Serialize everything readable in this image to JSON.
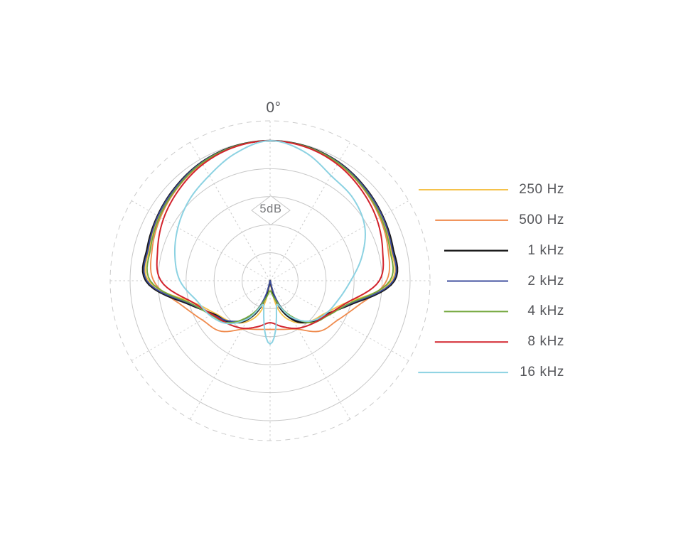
{
  "page": {
    "background": "#ffffff",
    "text_color": "#55565a"
  },
  "chart_data": {
    "type": "line",
    "subtype": "polar-pattern",
    "angle_zero_label": "0°",
    "db_ring_label": "5dB",
    "db_per_ring": 5,
    "num_solid_rings": 5,
    "outer_ring_db": 0,
    "center_db": -25,
    "angle_step_deg": 15,
    "grid": {
      "grid_on": true,
      "ring_color": "#c7c7c7",
      "dashed_color": "#cbcbcb",
      "radial_lines_every_deg": 30,
      "legend_position": "right"
    },
    "series": [
      {
        "name": "250 Hz",
        "color": "#F5C24B",
        "width": 1.8,
        "mirror": true,
        "angles_deg_0_to_180_step15": true,
        "db": [
          0,
          -0.2,
          -0.7,
          -1.4,
          -2.1,
          -2.7,
          -3.3,
          -10.5,
          -13.5,
          -14.8,
          -16.5,
          -20,
          -28
        ]
      },
      {
        "name": "500 Hz",
        "color": "#EF8A4C",
        "width": 1.8,
        "mirror": true,
        "angles_deg_0_to_180_step15": true,
        "db": [
          0,
          -0.25,
          -0.8,
          -1.6,
          -2.4,
          -3.2,
          -4.2,
          -8.5,
          -11,
          -12.3,
          -15,
          -16,
          -16.3
        ]
      },
      {
        "name": "1 kHz",
        "color": "#1A1A1A",
        "width": 2.4,
        "mirror": true,
        "angles_deg_0_to_180_step15": true,
        "db": [
          0,
          -0.15,
          -0.55,
          -1.2,
          -1.8,
          -2.3,
          -2.8,
          -9.5,
          -13.2,
          -14.6,
          -17,
          -22,
          -32
        ]
      },
      {
        "name": "2 kHz",
        "color": "#3D4D9E",
        "width": 1.9,
        "mirror": true,
        "angles_deg_0_to_180_step15": true,
        "db": [
          0,
          -0.2,
          -0.6,
          -1.3,
          -1.9,
          -2.5,
          -3.0,
          -9.8,
          -13.0,
          -14.8,
          -17.5,
          -23,
          -32
        ]
      },
      {
        "name": "4 kHz",
        "color": "#74A73D",
        "width": 1.9,
        "mirror": true,
        "angles_deg_0_to_180_step15": true,
        "db": [
          0,
          -0.2,
          -0.7,
          -1.5,
          -2.2,
          -2.9,
          -3.6,
          -10,
          -12.8,
          -14.4,
          -17.8,
          -21.5,
          -23.2
        ]
      },
      {
        "name": "8 kHz",
        "color": "#D2232D",
        "width": 2.0,
        "mirror": true,
        "angles_deg_0_to_180_step15": true,
        "db": [
          0,
          -0.3,
          -1.0,
          -2.0,
          -3.0,
          -4.2,
          -5.5,
          -10.5,
          -13,
          -14.2,
          -15.2,
          -16.5,
          -17.5
        ]
      },
      {
        "name": "16 kHz",
        "color": "#8CD2E2",
        "width": 2.0,
        "mirror": false,
        "angles_deg_0_to_345_step15": true,
        "db": [
          0,
          -1.2,
          -3.3,
          -4.1,
          -5.5,
          -8.0,
          -10.6,
          -12.3,
          -13.4,
          -14.8,
          -17.5,
          -20.5,
          -13.7,
          -20.5,
          -17.2,
          -14.2,
          -12.6,
          -11.4,
          -8.9,
          -7.4,
          -6.0,
          -4.6,
          -3.3,
          -1.4
        ]
      }
    ],
    "legend": {
      "labels": [
        "250 Hz",
        "500 Hz",
        "1 kHz",
        "2 kHz",
        "4 kHz",
        "8 kHz",
        "16 kHz"
      ]
    }
  }
}
